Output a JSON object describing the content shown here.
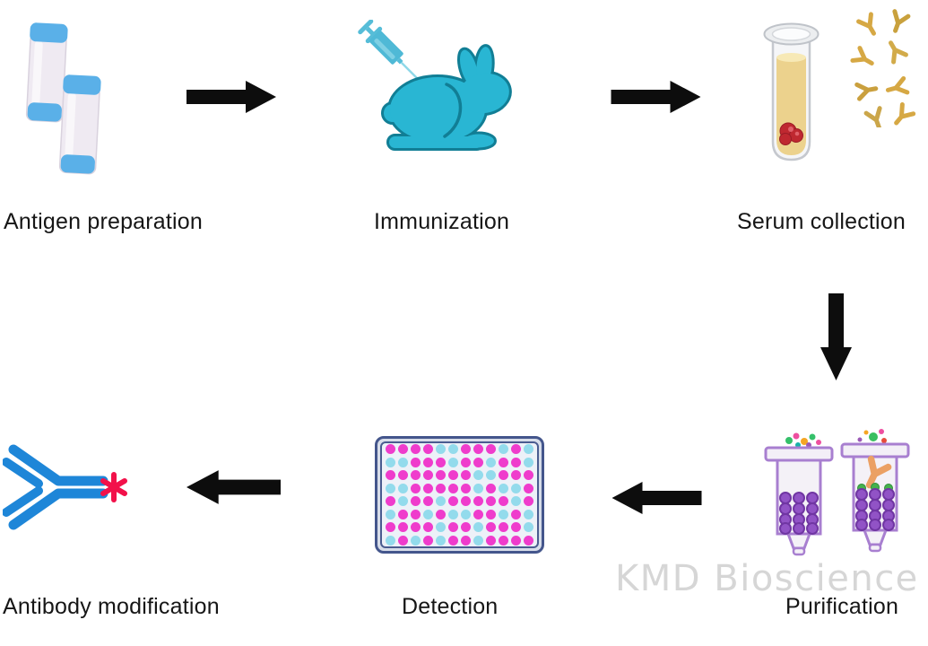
{
  "diagram_title": "",
  "watermark": "KMD Bioscience",
  "steps": [
    {
      "id": "antigen-preparation",
      "label": "Antigen preparation",
      "icon": "antigen-vials-icon"
    },
    {
      "id": "immunization",
      "label": "Immunization",
      "icon": "syringe-rabbit-icon"
    },
    {
      "id": "serum-collection",
      "label": "Serum collection",
      "icon": "serum-tube-antibodies-icon"
    },
    {
      "id": "purification",
      "label": "Purification",
      "icon": "chromatography-columns-icon"
    },
    {
      "id": "detection",
      "label": "Detection",
      "icon": "96-well-plate-icon"
    },
    {
      "id": "antibody-modification",
      "label": "Antibody modification",
      "icon": "labeled-antibody-icon"
    }
  ],
  "flow_arrows": [
    {
      "from": "antigen-preparation",
      "to": "immunization",
      "direction": "right"
    },
    {
      "from": "immunization",
      "to": "serum-collection",
      "direction": "right"
    },
    {
      "from": "serum-collection",
      "to": "purification",
      "direction": "down"
    },
    {
      "from": "purification",
      "to": "detection",
      "direction": "left"
    },
    {
      "from": "detection",
      "to": "antibody-modification",
      "direction": "left"
    }
  ],
  "well_plate": {
    "rows": 8,
    "cols": 12,
    "magenta_color": "#ef3ccc",
    "cyan_color": "#93dbec",
    "grid": [
      "MMMMCCMMMCMC",
      "CCMMMCMMCMMC",
      "MMMMMMMCCMMM",
      "CCMMMMMCMCCM",
      "MCMMCMMMMMCM",
      "CMMCMCCMMCMC",
      "MMMMCMMCMMMC",
      "CMCMCMMCMMMM"
    ]
  },
  "colors": {
    "arrow_black": "#0d0d0d",
    "rabbit_fill": "#29b6d3",
    "rabbit_outline": "#117e95",
    "syringe_blue": "#56bdd8",
    "vial_cap_blue": "#5ab0e8",
    "serum_yellow": "#ecd28d",
    "blood_clot_red": "#bf2830",
    "gold_antibody": "#d6a844",
    "column_purple": "#a87fd0",
    "bead_purple": "#9153c6",
    "blue_antibody": "#1e86d8",
    "asterisk_red": "#f2114a",
    "watermark_gray": "#d6d6d6",
    "label_black": "#161616"
  }
}
